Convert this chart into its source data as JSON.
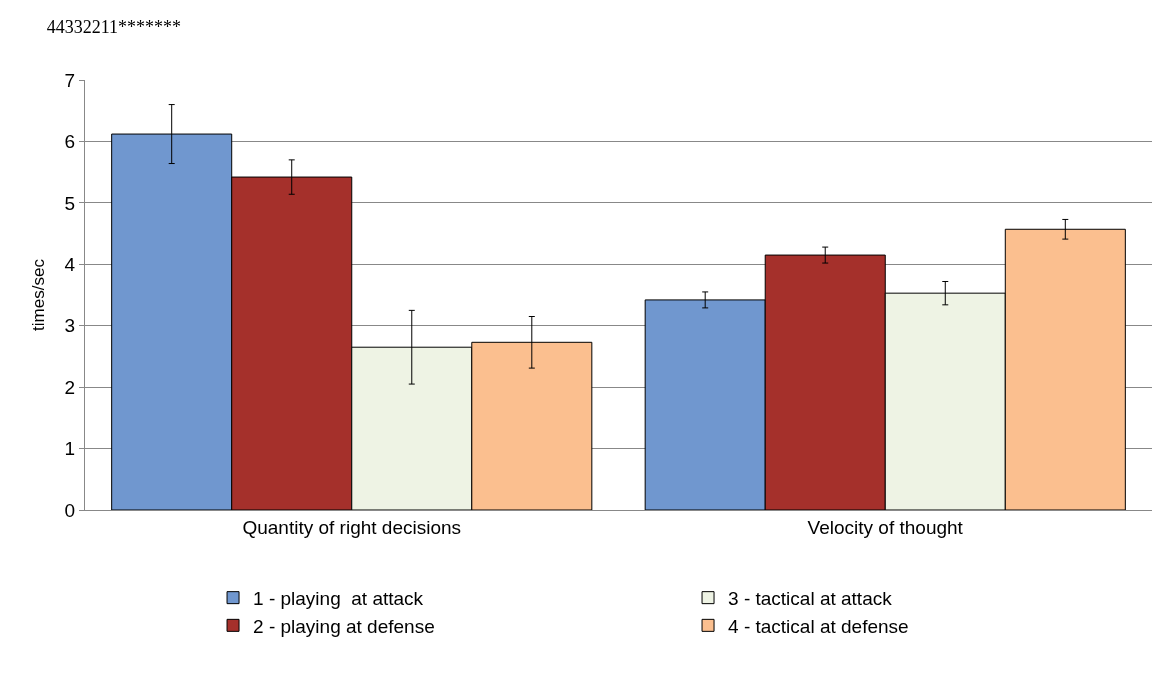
{
  "chart_data": {
    "type": "bar",
    "title": "44332211*******",
    "ylabel": "times/sec",
    "categories": [
      "Quantity of right decisions",
      "Velocity of thought"
    ],
    "series": [
      {
        "name": "1 - playing  at attack",
        "color": "#7097cf",
        "values": [
          6.12,
          3.42
        ],
        "errors": [
          0.48,
          0.13
        ]
      },
      {
        "name": "2 - playing at defense",
        "color": "#a5302b",
        "values": [
          5.42,
          4.15
        ],
        "errors": [
          0.28,
          0.13
        ]
      },
      {
        "name": "3 - tactical at attack",
        "color": "#eef3e4",
        "values": [
          2.65,
          3.53
        ],
        "errors": [
          0.6,
          0.19
        ]
      },
      {
        "name": "4 - tactical at defense",
        "color": "#fbbf8f",
        "values": [
          2.73,
          4.57
        ],
        "errors": [
          0.42,
          0.16
        ]
      }
    ],
    "ylim": [
      0,
      7
    ],
    "yticks": [
      0,
      1,
      2,
      3,
      4,
      5,
      6,
      7
    ],
    "grid": "y",
    "legend": "bottom"
  }
}
